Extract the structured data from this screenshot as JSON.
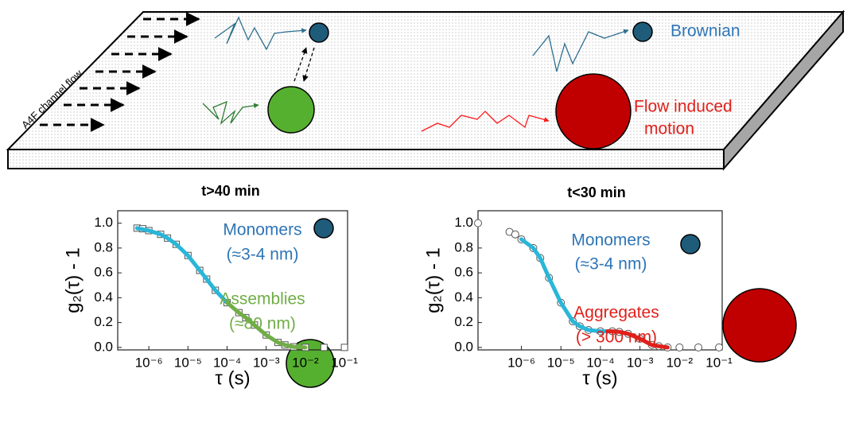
{
  "diagram": {
    "flow_label": "A4F channel flow",
    "brownian_label": "Brownian",
    "flow_motion_label": [
      "Flow induced",
      "motion"
    ],
    "time_labels": [
      "t>40 min",
      "t<30 min"
    ]
  },
  "chart_data": [
    {
      "type": "scatter-fit",
      "xlabel": "τ (s)",
      "ylabel": "g₂(τ) - 1",
      "log_x": true,
      "xlim": [
        1.6e-07,
        0.12
      ],
      "ylim": [
        -0.02,
        1.1
      ],
      "xticks": [
        {
          "value": 1e-06,
          "label": "10⁻⁶"
        },
        {
          "value": 1e-05,
          "label": "10⁻⁵"
        },
        {
          "value": 0.0001,
          "label": "10⁻⁴"
        },
        {
          "value": 0.001,
          "label": "10⁻³"
        },
        {
          "value": 0.01,
          "label": "10⁻²"
        },
        {
          "value": 0.1,
          "label": "10⁻¹"
        }
      ],
      "yticks": [
        {
          "value": 0,
          "label": "0.0"
        },
        0.2,
        0.4,
        0.6,
        0.8,
        {
          "value": 1,
          "label": "1.0"
        }
      ],
      "series": [
        {
          "marker": "square",
          "color": "#555555",
          "x": [
            5e-07,
            7e-07,
            1e-06,
            2e-06,
            3e-06,
            5e-06,
            1e-05,
            2e-05,
            3e-05,
            5e-05,
            0.0001,
            0.0002,
            0.0003,
            0.0005,
            0.001,
            0.002,
            0.003,
            0.005,
            0.01,
            0.03,
            0.1
          ],
          "values": [
            0.96,
            0.955,
            0.94,
            0.91,
            0.88,
            0.83,
            0.74,
            0.62,
            0.55,
            0.46,
            0.36,
            0.28,
            0.24,
            0.18,
            0.1,
            0.04,
            0.02,
            0.005,
            0,
            0,
            0
          ]
        },
        {
          "marker": "line",
          "color": "#29b6d8",
          "x": [
            5e-07,
            1e-06,
            2e-06,
            3e-06,
            5e-06,
            1e-05,
            2e-05,
            3e-05,
            5e-05,
            0.0001
          ],
          "values": [
            0.96,
            0.94,
            0.91,
            0.88,
            0.83,
            0.74,
            0.62,
            0.55,
            0.46,
            0.36
          ]
        },
        {
          "marker": "line",
          "color": "#70ad47",
          "x": [
            0.0001,
            0.0002,
            0.0003,
            0.0005,
            0.001,
            0.002,
            0.003,
            0.005,
            0.01
          ],
          "values": [
            0.36,
            0.28,
            0.24,
            0.18,
            0.1,
            0.04,
            0.02,
            0.005,
            0
          ]
        }
      ],
      "annotations": [
        {
          "text": "Monomers",
          "color": "#2e75b6"
        },
        {
          "text": "(≈3-4 nm)",
          "color": "#2e75b6"
        },
        {
          "text": "Assemblies",
          "color": "#70ad47"
        },
        {
          "text": "(≈80 nm)",
          "color": "#70ad47"
        }
      ]
    },
    {
      "type": "scatter-fit",
      "xlabel": "τ (s)",
      "ylabel": "g₂(τ) - 1",
      "log_x": true,
      "xlim": [
        8e-08,
        0.12
      ],
      "ylim": [
        -0.02,
        1.1
      ],
      "xticks": [
        {
          "value": 1e-06,
          "label": "10⁻⁶"
        },
        {
          "value": 1e-05,
          "label": "10⁻⁵"
        },
        {
          "value": 0.0001,
          "label": "10⁻⁴"
        },
        {
          "value": 0.001,
          "label": "10⁻³"
        },
        {
          "value": 0.01,
          "label": "10⁻²"
        },
        {
          "value": 0.1,
          "label": "10⁻¹"
        }
      ],
      "yticks": [
        {
          "value": 0,
          "label": "0.0"
        },
        0.2,
        0.4,
        0.6,
        0.8,
        {
          "value": 1,
          "label": "1.0"
        }
      ],
      "series": [
        {
          "marker": "circle",
          "color": "#555555",
          "x": [
            8e-08,
            5e-07,
            7e-07,
            1e-06,
            2e-06,
            3e-06,
            5e-06,
            1e-05,
            2e-05,
            3e-05,
            5e-05,
            0.0001,
            0.0002,
            0.0003,
            0.0005,
            0.001,
            0.002,
            0.003,
            0.005,
            0.01,
            0.03,
            0.1
          ],
          "values": [
            1.0,
            0.93,
            0.91,
            0.87,
            0.8,
            0.72,
            0.56,
            0.36,
            0.21,
            0.17,
            0.14,
            0.13,
            0.13,
            0.125,
            0.11,
            0.07,
            0.02,
            0.01,
            0,
            0,
            0,
            0
          ]
        },
        {
          "marker": "line",
          "color": "#29b6d8",
          "x": [
            1e-06,
            2e-06,
            3e-06,
            5e-06,
            1e-05,
            2e-05,
            3e-05,
            5e-05,
            0.0001,
            0.00015
          ],
          "values": [
            0.87,
            0.8,
            0.72,
            0.56,
            0.36,
            0.21,
            0.17,
            0.14,
            0.13,
            0.13
          ]
        },
        {
          "marker": "line",
          "color": "#e0201b",
          "x": [
            0.00015,
            0.0002,
            0.0003,
            0.0005,
            0.001,
            0.002,
            0.003,
            0.005
          ],
          "values": [
            0.13,
            0.13,
            0.125,
            0.11,
            0.07,
            0.02,
            0.01,
            0
          ]
        }
      ],
      "annotations": [
        {
          "text": "Monomers",
          "color": "#2e75b6"
        },
        {
          "text": "(≈3-4 nm)",
          "color": "#2e75b6"
        },
        {
          "text": "Aggregates",
          "color": "#e0201b"
        },
        {
          "text": "(> 300 nm)",
          "color": "#e0201b"
        }
      ]
    }
  ]
}
